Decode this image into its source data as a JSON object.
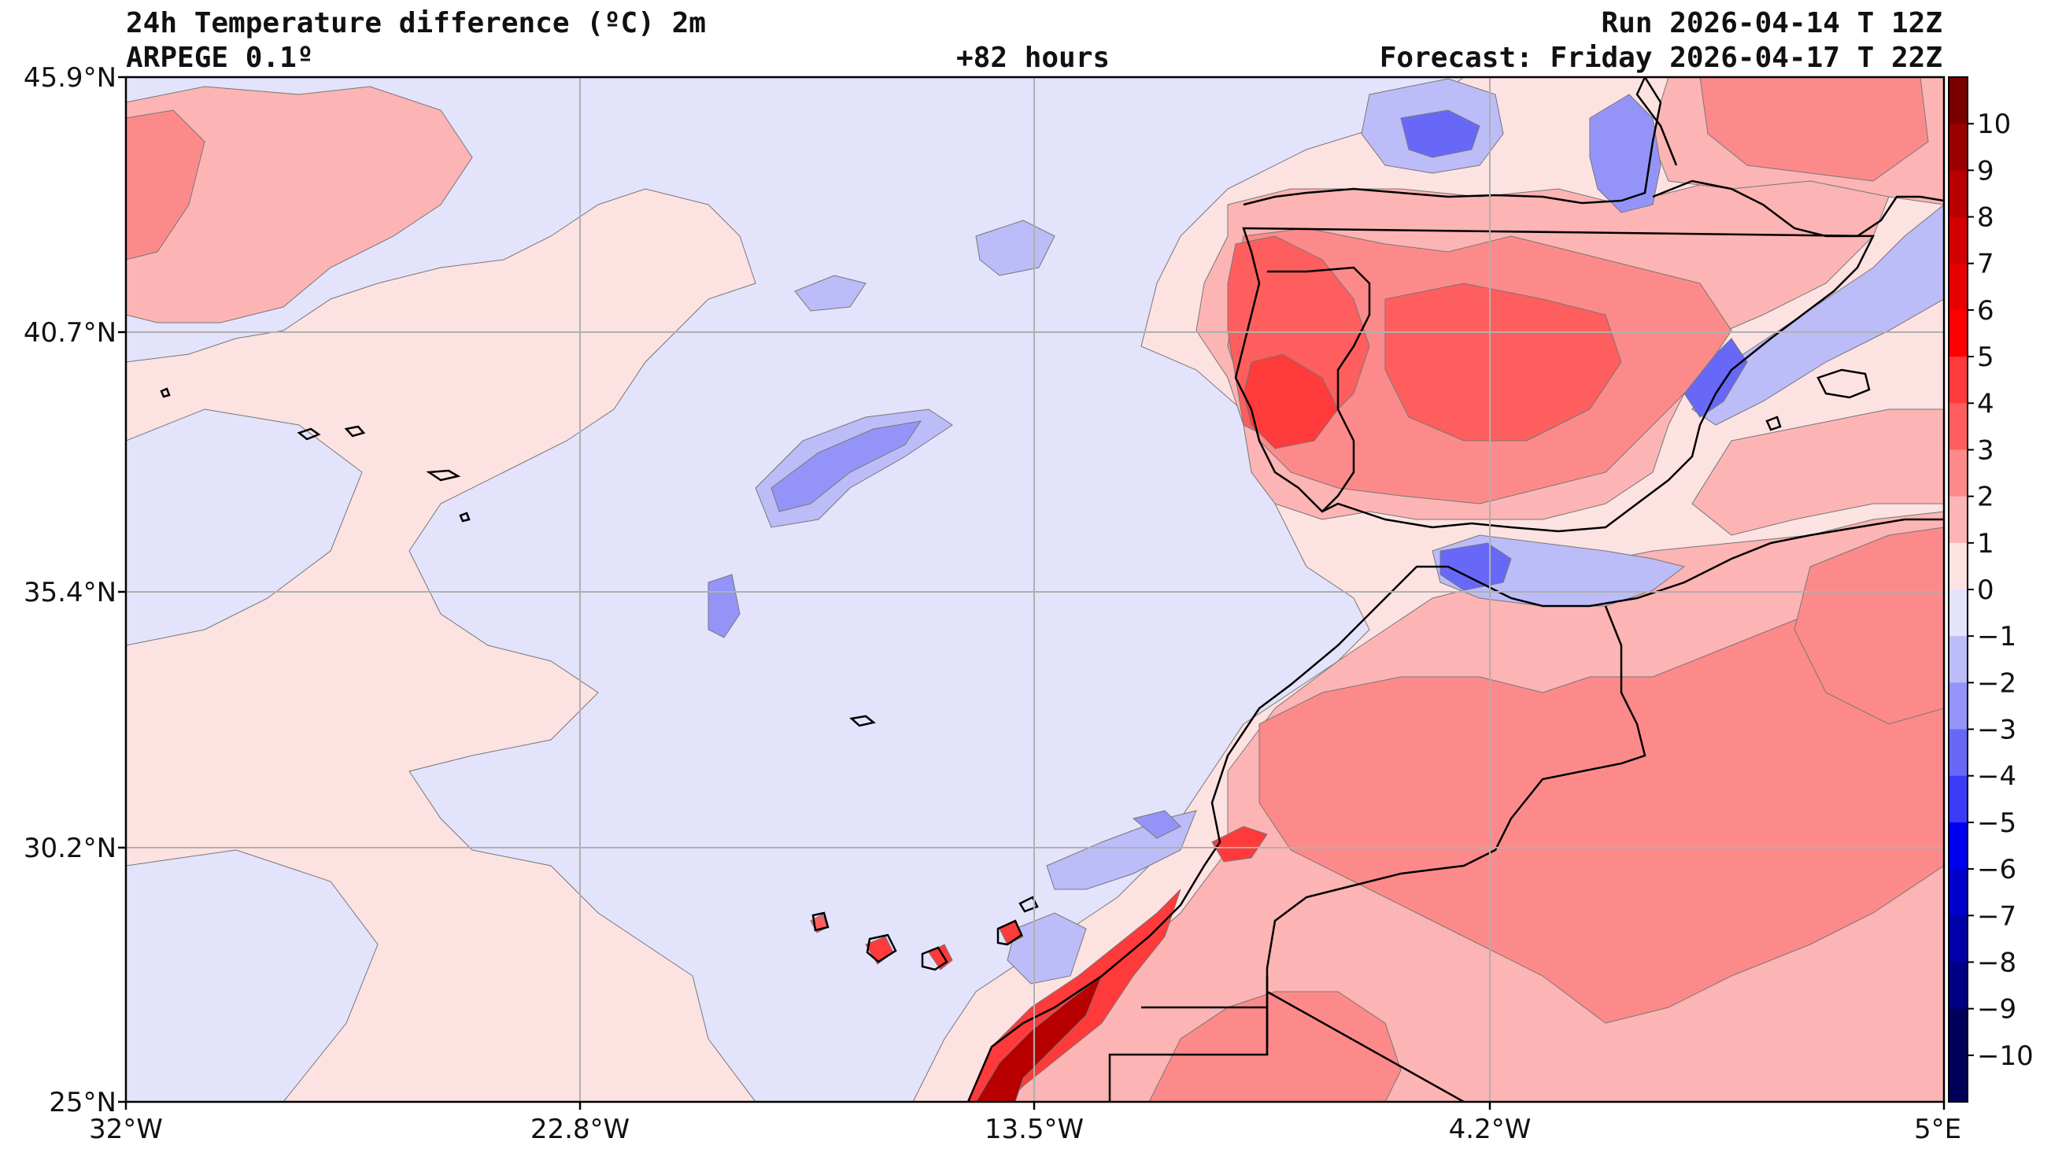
{
  "header": {
    "title_line1": "24h Temperature difference (ºC) 2m",
    "title_line2": "ARPEGE 0.1º",
    "center": "+82 hours",
    "run": "Run 2026-04-14 T 12Z",
    "forecast": "Forecast: Friday 2026-04-17 T 22Z"
  },
  "axes": {
    "lat_labels": [
      "45.9°N",
      "40.7°N",
      "35.4°N",
      "30.2°N",
      "25°N"
    ],
    "lon_labels": [
      "32°W",
      "22.8°W",
      "13.5°W",
      "4.2°W",
      "5°E"
    ]
  },
  "colorbar": {
    "labels": [
      "10",
      "9",
      "8",
      "7",
      "6",
      "5",
      "4",
      "3",
      "2",
      "1",
      "0",
      "−1",
      "−2",
      "−3",
      "−4",
      "−5",
      "−6",
      "−7",
      "−8",
      "−9",
      "−10"
    ],
    "colors": [
      "#7a0000",
      "#9a0000",
      "#b80000",
      "#d20000",
      "#e80000",
      "#ff0000",
      "#ff3a3a",
      "#fe5e5e",
      "#fd8a8a",
      "#fcb4b4",
      "#fde2e2",
      "#e3e3fb",
      "#bcbcf8",
      "#9494f8",
      "#6868f8",
      "#3a3af8",
      "#0000f0",
      "#0000cc",
      "#0000a8",
      "#000084",
      "#00005a"
    ]
  },
  "field_colors": {
    "ocean_warm": "#fde2e2",
    "ocean_cool": "#e3e3fb",
    "land_warm": "#fcb4b4",
    "warm_2": "#fd8a8a",
    "warm_3": "#fe5e5e",
    "warm_4": "#ff3a3a",
    "warm_5": "#e80000",
    "warm_6": "#b80000",
    "cool_1": "#bcbcf8",
    "cool_2": "#9494f8",
    "cool_3": "#6868f8",
    "cool_4": "#3a3af8"
  }
}
